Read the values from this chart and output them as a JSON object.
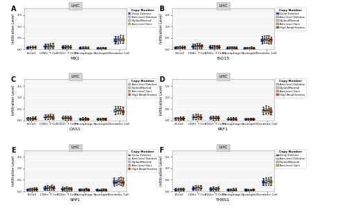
{
  "panels": [
    "A",
    "B",
    "C",
    "D",
    "E",
    "F"
  ],
  "genes": [
    "MX1",
    "ISG15",
    "OAS1",
    "PRF1",
    "SPP1",
    "THBS1"
  ],
  "title": "LHC",
  "cell_types": [
    "B-Cell",
    "CD8+ T Cell",
    "CD4+ T Cell",
    "Macrophage",
    "Neutrophil",
    "Dendritic Cell"
  ],
  "copy_number_categories": {
    "A": [
      "Deep Deletion",
      "Arm-level Deletion",
      "Diploid/Normal",
      "Arm-level Gain"
    ],
    "B": [
      "Deep Deletion",
      "Arm-level Deletion",
      "Diploid/Normal",
      "Arm-level Gain",
      "High Amplification"
    ],
    "C": [
      "Arm-level Deletion",
      "Diploid/Normal",
      "Arm-level Gain",
      "High Amplification"
    ],
    "D": [
      "Arm-level Deletion",
      "Diploid/Normal",
      "Arm-level Gain",
      "High Amplification"
    ],
    "E": [
      "Deep Deletion",
      "Arm-level Deletion",
      "Diploid/Normal",
      "Arm-level Gain",
      "High Amplification"
    ],
    "F": [
      "Deep Deletion",
      "Arm-level Deletion",
      "Diploid/Normal",
      "Arm-level Gain"
    ]
  },
  "colors": {
    "Deep Deletion": "#3953a4",
    "Arm-level Deletion": "#aec6e8",
    "Diploid/Normal": "#c8c8c8",
    "Arm-level Gain": "#d4a94e",
    "High Amplification": "#c0504d"
  },
  "ylabel": "Infiltration Level",
  "background_color": "#ffffff",
  "box_data": {
    "B-Cell": {
      "Deep Deletion": {
        "median": 0.07,
        "q1": 0.05,
        "q3": 0.1,
        "whislo": 0.02,
        "whishi": 0.15
      },
      "Arm-level Deletion": {
        "median": 0.08,
        "q1": 0.05,
        "q3": 0.11,
        "whislo": 0.02,
        "whishi": 0.16
      },
      "Diploid/Normal": {
        "median": 0.08,
        "q1": 0.06,
        "q3": 0.11,
        "whislo": 0.02,
        "whishi": 0.17
      },
      "Arm-level Gain": {
        "median": 0.08,
        "q1": 0.06,
        "q3": 0.12,
        "whislo": 0.02,
        "whishi": 0.18
      },
      "High Amplification": {
        "median": 0.09,
        "q1": 0.06,
        "q3": 0.12,
        "whislo": 0.02,
        "whishi": 0.18
      }
    },
    "CD8+ T Cell": {
      "Deep Deletion": {
        "median": 0.13,
        "q1": 0.09,
        "q3": 0.18,
        "whislo": 0.04,
        "whishi": 0.26
      },
      "Arm-level Deletion": {
        "median": 0.15,
        "q1": 0.1,
        "q3": 0.2,
        "whislo": 0.05,
        "whishi": 0.28
      },
      "Diploid/Normal": {
        "median": 0.15,
        "q1": 0.1,
        "q3": 0.21,
        "whislo": 0.05,
        "whishi": 0.29
      },
      "Arm-level Gain": {
        "median": 0.16,
        "q1": 0.11,
        "q3": 0.22,
        "whislo": 0.05,
        "whishi": 0.3
      },
      "High Amplification": {
        "median": 0.14,
        "q1": 0.1,
        "q3": 0.19,
        "whislo": 0.05,
        "whishi": 0.27
      }
    },
    "CD4+ T Cell": {
      "Deep Deletion": {
        "median": 0.1,
        "q1": 0.07,
        "q3": 0.14,
        "whislo": 0.03,
        "whishi": 0.2
      },
      "Arm-level Deletion": {
        "median": 0.11,
        "q1": 0.08,
        "q3": 0.15,
        "whislo": 0.03,
        "whishi": 0.21
      },
      "Diploid/Normal": {
        "median": 0.11,
        "q1": 0.08,
        "q3": 0.15,
        "whislo": 0.03,
        "whishi": 0.21
      },
      "Arm-level Gain": {
        "median": 0.11,
        "q1": 0.08,
        "q3": 0.15,
        "whislo": 0.03,
        "whishi": 0.21
      },
      "High Amplification": {
        "median": 0.1,
        "q1": 0.07,
        "q3": 0.14,
        "whislo": 0.03,
        "whishi": 0.2
      }
    },
    "Macrophage": {
      "Deep Deletion": {
        "median": 0.06,
        "q1": 0.04,
        "q3": 0.09,
        "whislo": 0.01,
        "whishi": 0.13
      },
      "Arm-level Deletion": {
        "median": 0.06,
        "q1": 0.04,
        "q3": 0.09,
        "whislo": 0.01,
        "whishi": 0.13
      },
      "Diploid/Normal": {
        "median": 0.07,
        "q1": 0.04,
        "q3": 0.1,
        "whislo": 0.01,
        "whishi": 0.14
      },
      "Arm-level Gain": {
        "median": 0.07,
        "q1": 0.05,
        "q3": 0.1,
        "whislo": 0.01,
        "whishi": 0.15
      },
      "High Amplification": {
        "median": 0.06,
        "q1": 0.04,
        "q3": 0.09,
        "whislo": 0.01,
        "whishi": 0.13
      }
    },
    "Neutrophil": {
      "Deep Deletion": {
        "median": 0.06,
        "q1": 0.04,
        "q3": 0.08,
        "whislo": 0.01,
        "whishi": 0.12
      },
      "Arm-level Deletion": {
        "median": 0.06,
        "q1": 0.04,
        "q3": 0.08,
        "whislo": 0.01,
        "whishi": 0.12
      },
      "Diploid/Normal": {
        "median": 0.06,
        "q1": 0.04,
        "q3": 0.08,
        "whislo": 0.01,
        "whishi": 0.12
      },
      "Arm-level Gain": {
        "median": 0.06,
        "q1": 0.04,
        "q3": 0.09,
        "whislo": 0.01,
        "whishi": 0.13
      },
      "High Amplification": {
        "median": 0.06,
        "q1": 0.04,
        "q3": 0.08,
        "whislo": 0.01,
        "whishi": 0.12
      }
    },
    "Dendritic Cell": {
      "Deep Deletion": {
        "median": 0.38,
        "q1": 0.32,
        "q3": 0.48,
        "whislo": 0.25,
        "whishi": 0.6
      },
      "Arm-level Deletion": {
        "median": 0.4,
        "q1": 0.34,
        "q3": 0.5,
        "whislo": 0.26,
        "whishi": 0.62
      },
      "Diploid/Normal": {
        "median": 0.43,
        "q1": 0.36,
        "q3": 0.53,
        "whislo": 0.28,
        "whishi": 0.65
      },
      "Arm-level Gain": {
        "median": 0.42,
        "q1": 0.35,
        "q3": 0.52,
        "whislo": 0.27,
        "whishi": 0.63
      },
      "High Amplification": {
        "median": 0.39,
        "q1": 0.33,
        "q3": 0.49,
        "whislo": 0.25,
        "whishi": 0.61
      }
    }
  },
  "ylim": [
    0,
    1.8
  ],
  "yticks": [
    0.0,
    0.5,
    1.0,
    1.5
  ],
  "scatter_alpha": 0.35,
  "scatter_size": 1.5
}
